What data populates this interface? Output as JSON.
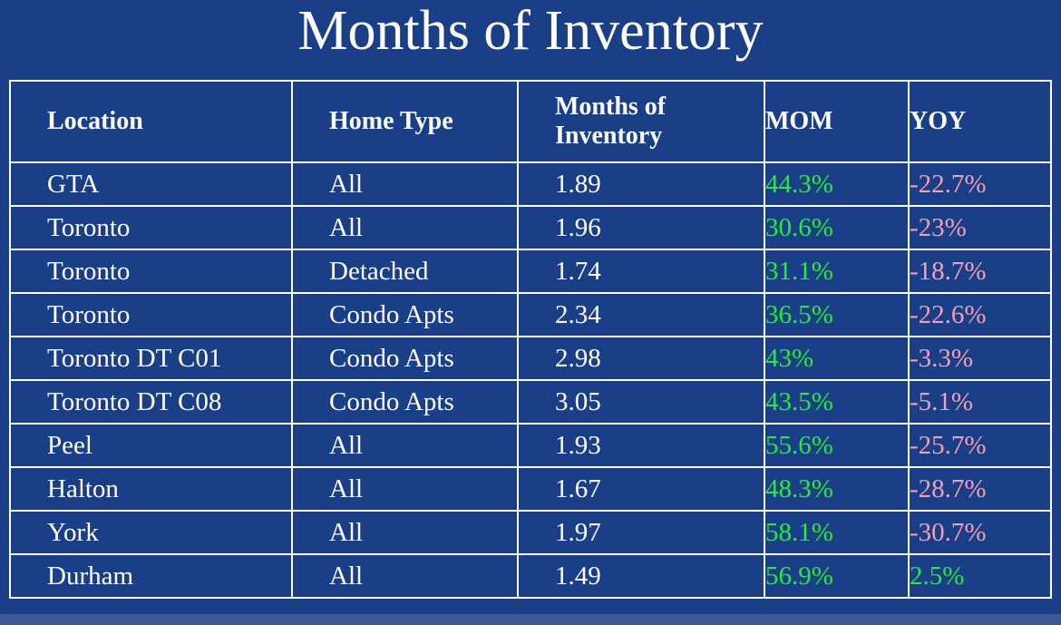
{
  "title": "Months of Inventory",
  "colors": {
    "background": "#1a3f86",
    "border": "#ffffff",
    "mom_text": "#22ee33",
    "yoy_negative_text": "#f4a0b4",
    "yoy_positive_text": "#22ee33"
  },
  "table": {
    "headers": [
      "Location",
      "Home Type",
      "Months of Inventory",
      "MOM",
      "YOY"
    ],
    "rows": [
      {
        "location": "GTA",
        "home_type": "All",
        "months": "1.89",
        "mom": "44.3%",
        "yoy": "-22.7%"
      },
      {
        "location": "Toronto",
        "home_type": "All",
        "months": "1.96",
        "mom": "30.6%",
        "yoy": "-23%"
      },
      {
        "location": "Toronto",
        "home_type": "Detached",
        "months": "1.74",
        "mom": "31.1%",
        "yoy": "-18.7%"
      },
      {
        "location": "Toronto",
        "home_type": "Condo Apts",
        "months": "2.34",
        "mom": "36.5%",
        "yoy": "-22.6%"
      },
      {
        "location": "Toronto DT C01",
        "home_type": "Condo Apts",
        "months": "2.98",
        "mom": "43%",
        "yoy": "-3.3%"
      },
      {
        "location": "Toronto DT C08",
        "home_type": "Condo Apts",
        "months": "3.05",
        "mom": "43.5%",
        "yoy": "-5.1%"
      },
      {
        "location": "Peel",
        "home_type": "All",
        "months": "1.93",
        "mom": "55.6%",
        "yoy": "-25.7%"
      },
      {
        "location": "Halton",
        "home_type": "All",
        "months": "1.67",
        "mom": "48.3%",
        "yoy": "-28.7%"
      },
      {
        "location": "York",
        "home_type": "All",
        "months": "1.97",
        "mom": "58.1%",
        "yoy": "-30.7%"
      },
      {
        "location": "Durham",
        "home_type": "All",
        "months": "1.49",
        "mom": "56.9%",
        "yoy": "2.5%"
      }
    ]
  }
}
